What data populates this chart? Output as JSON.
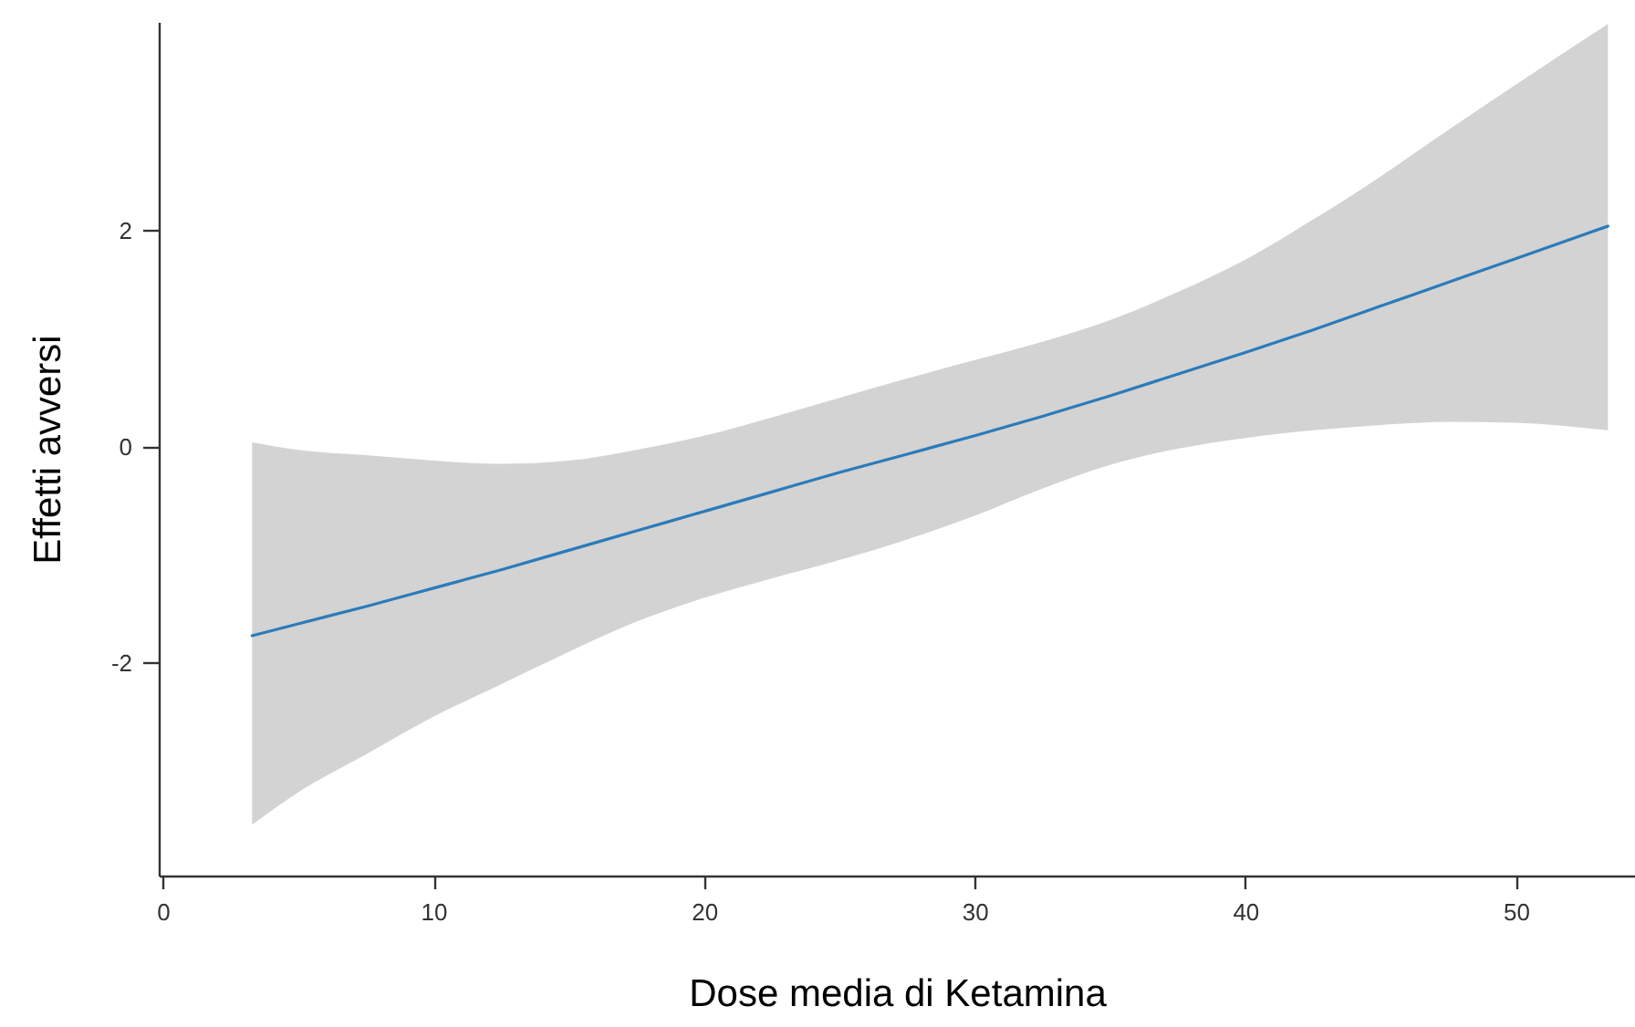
{
  "chart_data": {
    "type": "line",
    "xlabel": "Dose media di Ketamina",
    "ylabel": "Effetti avversi",
    "x": [
      3.3,
      5,
      7.5,
      10,
      12.5,
      15,
      17.5,
      20,
      22.5,
      25,
      27.5,
      30,
      32.5,
      35,
      37.5,
      40,
      42.5,
      45,
      47.5,
      50,
      53.4
    ],
    "series": [
      {
        "color": "#2b7bba",
        "values": [
          -1.75,
          -1.64,
          -1.48,
          -1.31,
          -1.14,
          -0.96,
          -0.78,
          -0.6,
          -0.42,
          -0.24,
          -0.07,
          0.1,
          0.28,
          0.47,
          0.67,
          0.87,
          1.08,
          1.3,
          1.52,
          1.74,
          2.04
        ],
        "lower": [
          -3.5,
          -3.2,
          -2.85,
          -2.5,
          -2.2,
          -1.9,
          -1.62,
          -1.4,
          -1.22,
          -1.05,
          -0.86,
          -0.64,
          -0.39,
          -0.17,
          -0.02,
          0.08,
          0.15,
          0.2,
          0.23,
          0.22,
          0.15
        ],
        "upper": [
          0.04,
          -0.03,
          -0.08,
          -0.13,
          -0.16,
          -0.13,
          -0.03,
          0.1,
          0.27,
          0.45,
          0.63,
          0.8,
          0.97,
          1.17,
          1.43,
          1.73,
          2.1,
          2.5,
          2.93,
          3.35,
          3.91
        ]
      }
    ],
    "xlim": [
      -0.15,
      54.4
    ],
    "ylim": [
      -3.97,
      3.93
    ],
    "xticks": [
      0,
      10,
      20,
      30,
      40,
      50
    ],
    "yticks": [
      -2,
      0,
      2
    ]
  }
}
